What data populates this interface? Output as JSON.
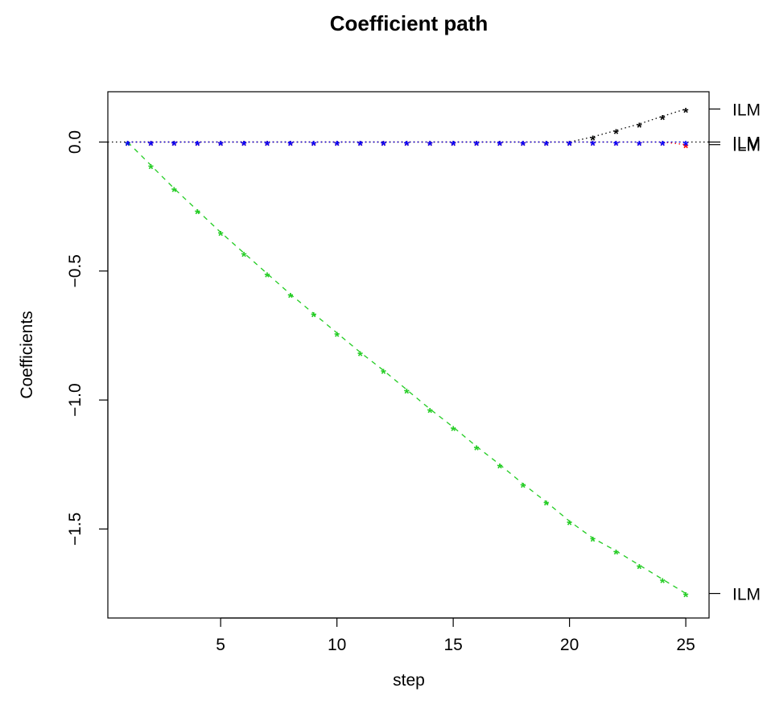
{
  "chart_data": {
    "type": "line",
    "title": "Coefficient path",
    "xlabel": "step",
    "ylabel": "Coefficients",
    "xlim": [
      0.15,
      26.0
    ],
    "ylim": [
      -1.845,
      0.195
    ],
    "x_ticks": [
      5,
      10,
      15,
      20,
      25
    ],
    "y_ticks": [
      0.0,
      -0.5,
      -1.0,
      -1.5
    ],
    "y_tick_labels": [
      "0.0",
      "−0.5",
      "−1.0",
      "−1.5"
    ],
    "zero_line": {
      "y": 0,
      "style": "dotted",
      "color": "#000000"
    },
    "marker": "*",
    "x": [
      1,
      2,
      3,
      4,
      5,
      6,
      7,
      8,
      9,
      10,
      11,
      12,
      13,
      14,
      15,
      16,
      17,
      18,
      19,
      20,
      21,
      22,
      23,
      24,
      25
    ],
    "series": [
      {
        "color": "#000000",
        "line_style": "dotted",
        "values": [
          0,
          0,
          0,
          0,
          0,
          0,
          0,
          0,
          0,
          0,
          0,
          0,
          0,
          0,
          0,
          0,
          0,
          0,
          0,
          0,
          0.02,
          0.045,
          0.07,
          0.1,
          0.128
        ],
        "right_label": "ILM"
      },
      {
        "color": "#ff0000",
        "line_style": "dotted",
        "values": [
          0,
          0,
          0,
          0,
          0,
          0,
          0,
          0,
          0,
          0,
          0,
          0,
          0,
          0,
          0,
          0,
          0,
          0,
          0,
          0,
          0,
          0,
          0,
          0,
          -0.01
        ],
        "right_label": "ILM"
      },
      {
        "color": "#22cc22",
        "line_style": "dashed",
        "values": [
          0,
          -0.09,
          -0.18,
          -0.265,
          -0.35,
          -0.43,
          -0.51,
          -0.59,
          -0.665,
          -0.74,
          -0.815,
          -0.885,
          -0.96,
          -1.035,
          -1.105,
          -1.18,
          -1.25,
          -1.325,
          -1.395,
          -1.47,
          -1.535,
          -1.585,
          -1.64,
          -1.695,
          -1.75
        ],
        "right_label": "ILM"
      },
      {
        "color": "#0000ff",
        "line_style": "dotted",
        "values": [
          0,
          0,
          0,
          0,
          0,
          0,
          0,
          0,
          0,
          0,
          0,
          0,
          0,
          0,
          0,
          0,
          0,
          0,
          0,
          0,
          0,
          0,
          0,
          0,
          0
        ],
        "right_label": "ILM"
      }
    ]
  }
}
